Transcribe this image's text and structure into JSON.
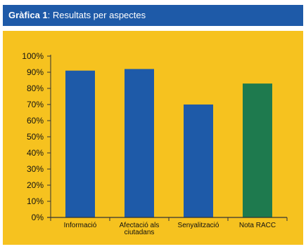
{
  "header": {
    "title_bold": "Gràfica 1",
    "title_rest": ": Resultats per aspectes"
  },
  "colors": {
    "header_bg": "#1e5aa8",
    "panel_bg": "#f6c21f",
    "bar_blue": "#1e5aa8",
    "bar_green": "#1e7a4e",
    "axis": "#333333"
  },
  "chart_data": {
    "type": "bar",
    "categories": [
      [
        "Informació"
      ],
      [
        "Afectació als",
        "ciutadans"
      ],
      [
        "Senyalització"
      ],
      [
        "Nota RACC"
      ]
    ],
    "values": [
      91,
      92,
      70,
      83
    ],
    "bar_colors": [
      "#1e5aa8",
      "#1e5aa8",
      "#1e5aa8",
      "#1e7a4e"
    ],
    "ylim": [
      0,
      100
    ],
    "yticks": [
      "0%",
      "10%",
      "20%",
      "30%",
      "40%",
      "50%",
      "60%",
      "70%",
      "80%",
      "90%",
      "100%"
    ],
    "title": "",
    "xlabel": "",
    "ylabel": "",
    "grid": false,
    "legend": "none"
  }
}
